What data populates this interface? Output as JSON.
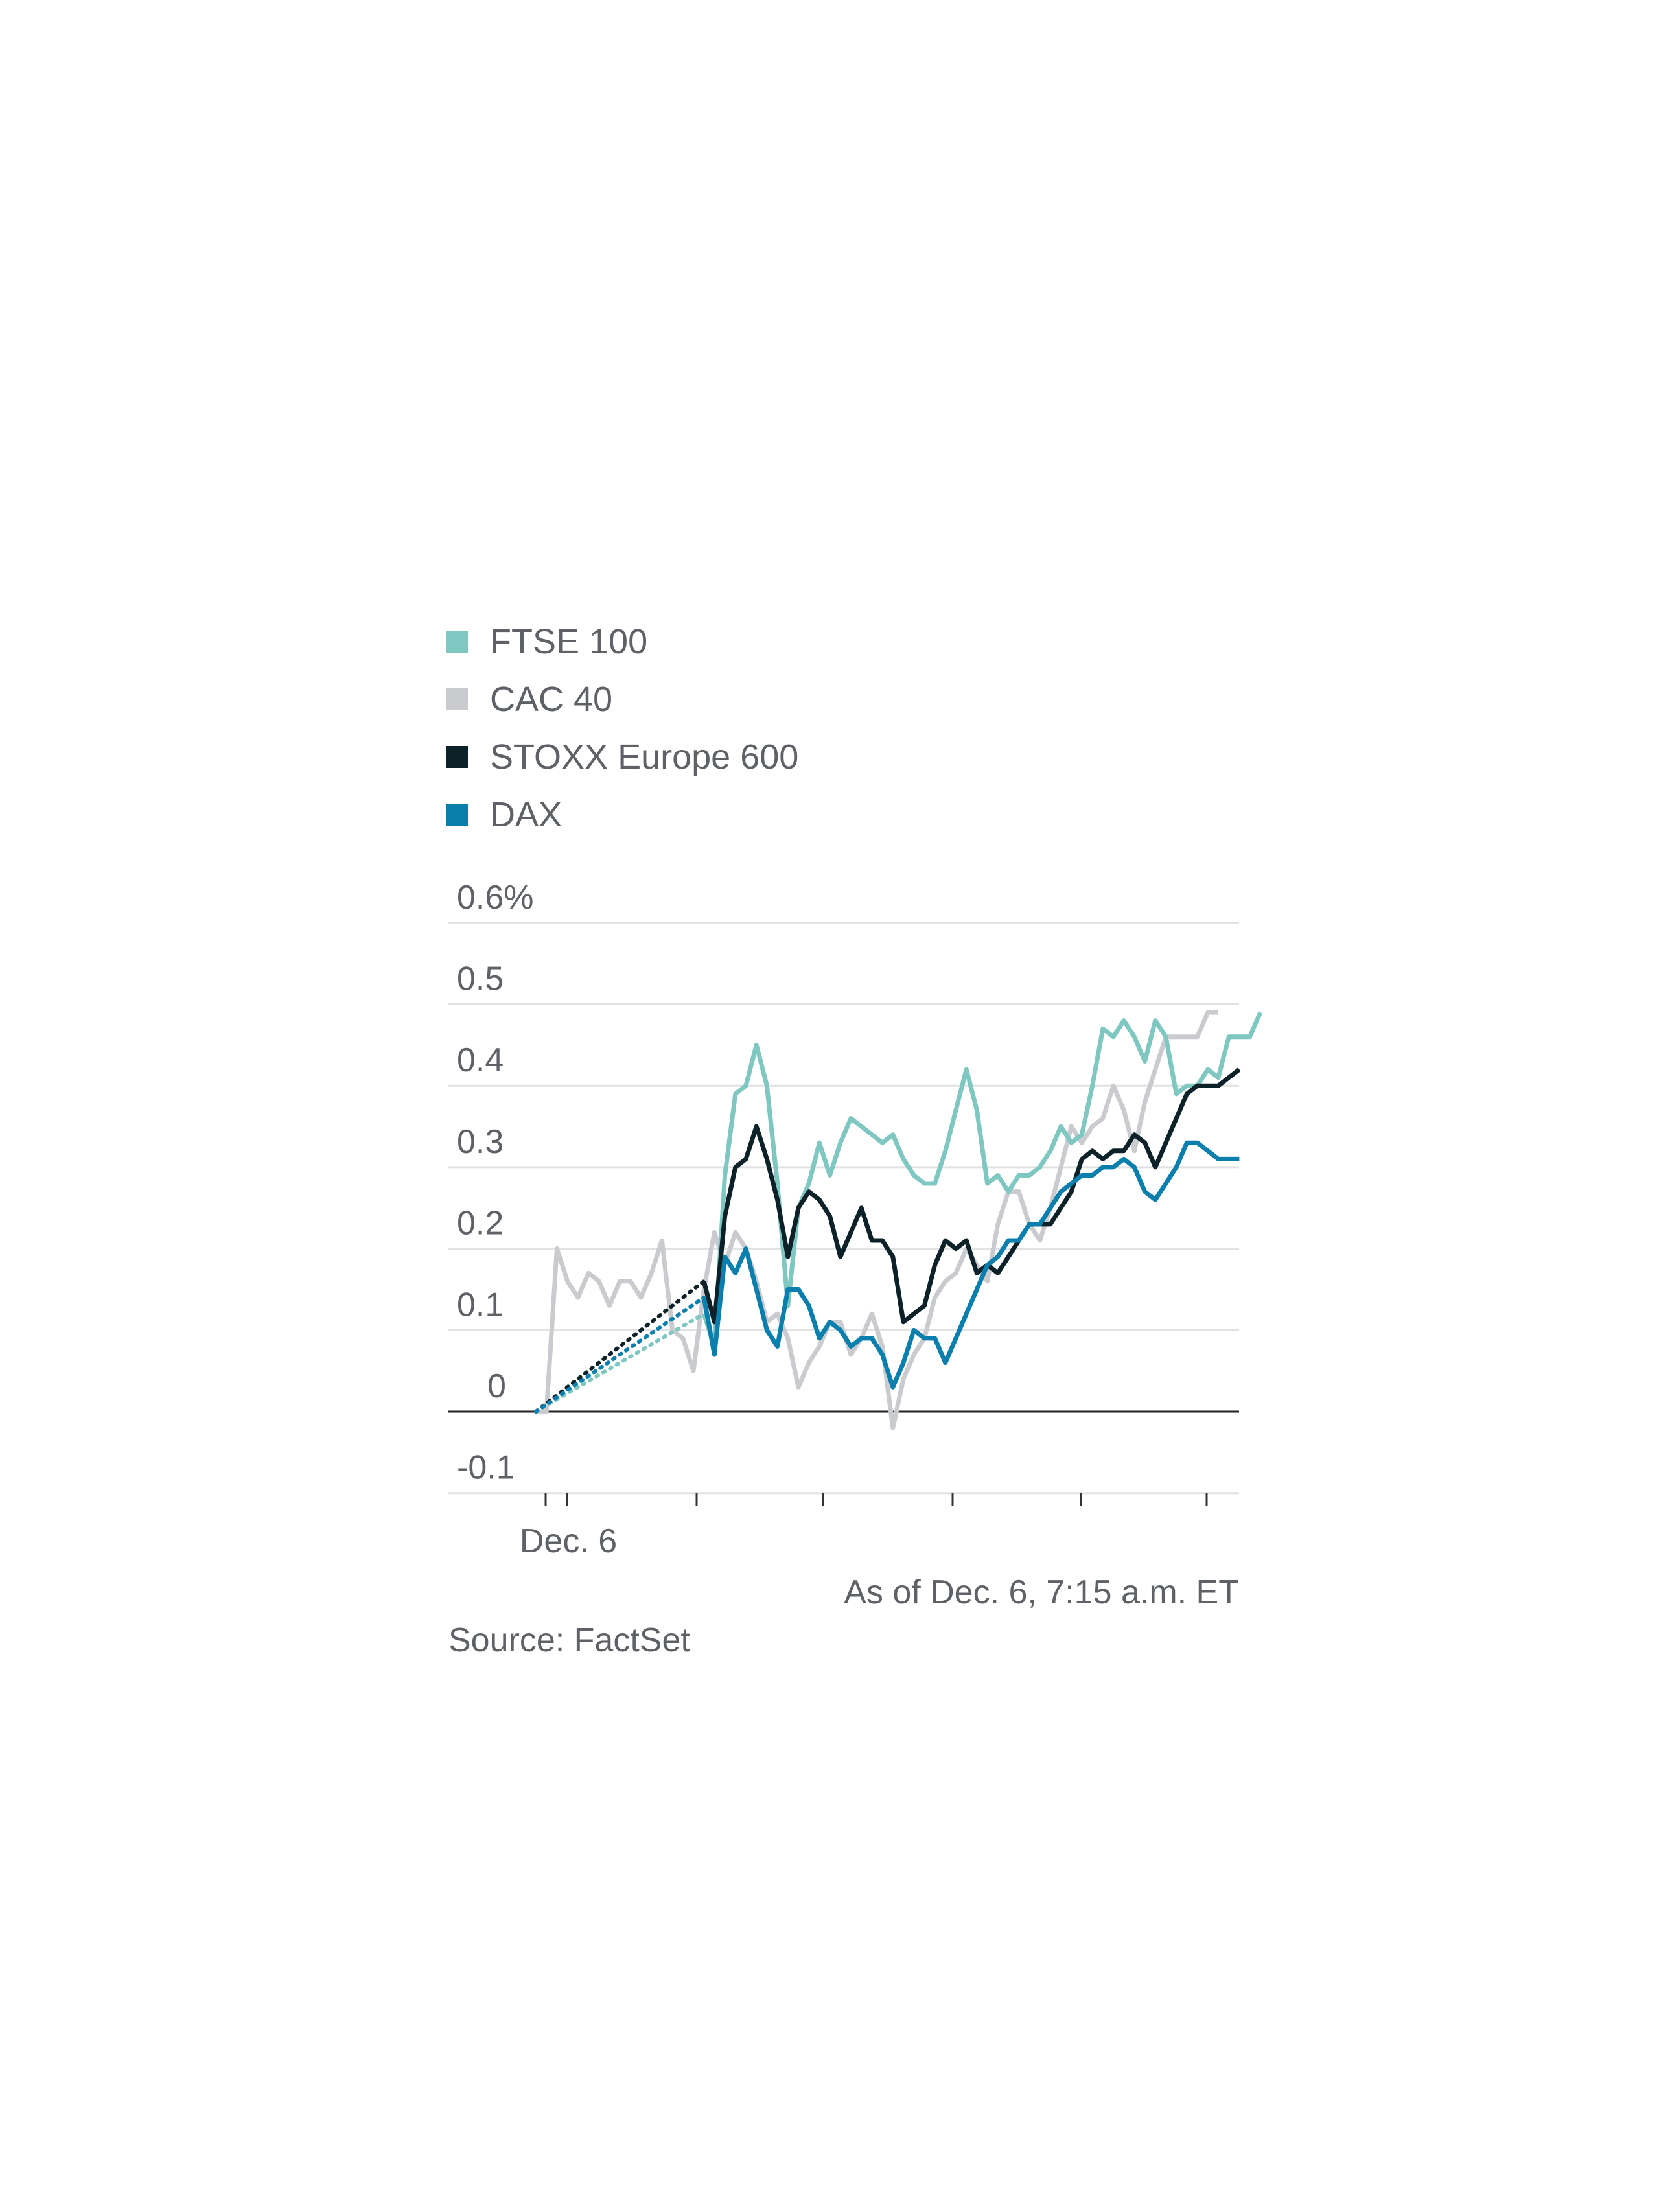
{
  "chart_data": {
    "type": "line",
    "legend_position": "top-left",
    "grid": true,
    "ylim": [
      -0.1,
      0.6
    ],
    "y_ticks": [
      "0.6%",
      "0.5",
      "0.4",
      "0.3",
      "0.2",
      "0.1",
      "0",
      "-0.1"
    ],
    "y_tick_values": [
      0.6,
      0.5,
      0.4,
      0.3,
      0.2,
      0.1,
      0,
      -0.1
    ],
    "x_tick_label": "Dec. 6",
    "note": "As of Dec. 6, 7:15 a.m. ET",
    "source": "Source: FactSet",
    "series": [
      {
        "name": "FTSE 100",
        "color": "#7fc7c1",
        "dotted": [
          [
            0,
            0
          ],
          [
            8,
            0.06
          ],
          [
            16,
            0.12
          ]
        ],
        "values": [
          [
            16,
            0.12
          ],
          [
            17,
            0.08
          ],
          [
            18,
            0.29
          ],
          [
            19,
            0.39
          ],
          [
            20,
            0.4
          ],
          [
            21,
            0.45
          ],
          [
            22,
            0.4
          ],
          [
            23,
            0.28
          ],
          [
            24,
            0.13
          ],
          [
            25,
            0.25
          ],
          [
            26,
            0.28
          ],
          [
            27,
            0.33
          ],
          [
            28,
            0.29
          ],
          [
            29,
            0.33
          ],
          [
            30,
            0.36
          ],
          [
            31,
            0.35
          ],
          [
            32,
            0.34
          ],
          [
            33,
            0.33
          ],
          [
            34,
            0.34
          ],
          [
            35,
            0.31
          ],
          [
            36,
            0.29
          ],
          [
            37,
            0.28
          ],
          [
            38,
            0.28
          ],
          [
            39,
            0.32
          ],
          [
            40,
            0.37
          ],
          [
            41,
            0.42
          ],
          [
            42,
            0.37
          ],
          [
            43,
            0.28
          ],
          [
            44,
            0.29
          ],
          [
            45,
            0.27
          ],
          [
            46,
            0.29
          ],
          [
            47,
            0.29
          ],
          [
            48,
            0.3
          ],
          [
            49,
            0.32
          ],
          [
            50,
            0.35
          ],
          [
            51,
            0.33
          ],
          [
            52,
            0.34
          ],
          [
            53,
            0.4
          ],
          [
            54,
            0.47
          ],
          [
            55,
            0.46
          ],
          [
            56,
            0.48
          ],
          [
            57,
            0.46
          ],
          [
            58,
            0.43
          ],
          [
            59,
            0.48
          ],
          [
            60,
            0.46
          ],
          [
            61,
            0.39
          ],
          [
            62,
            0.4
          ],
          [
            63,
            0.4
          ],
          [
            64,
            0.42
          ],
          [
            65,
            0.41
          ],
          [
            66,
            0.46
          ],
          [
            67,
            0.46
          ],
          [
            68,
            0.46
          ],
          [
            69,
            0.49
          ]
        ]
      },
      {
        "name": "CAC 40",
        "color": "#c9cbcf",
        "values": [
          [
            0,
            0
          ],
          [
            1,
            0
          ],
          [
            2,
            0.2
          ],
          [
            3,
            0.16
          ],
          [
            4,
            0.14
          ],
          [
            5,
            0.17
          ],
          [
            6,
            0.16
          ],
          [
            7,
            0.13
          ],
          [
            8,
            0.16
          ],
          [
            9,
            0.16
          ],
          [
            10,
            0.14
          ],
          [
            11,
            0.17
          ],
          [
            12,
            0.21
          ],
          [
            13,
            0.1
          ],
          [
            14,
            0.09
          ],
          [
            15,
            0.05
          ],
          [
            16,
            0.15
          ],
          [
            17,
            0.22
          ],
          [
            18,
            0.18
          ],
          [
            19,
            0.22
          ],
          [
            20,
            0.2
          ],
          [
            21,
            0.16
          ],
          [
            22,
            0.11
          ],
          [
            23,
            0.12
          ],
          [
            24,
            0.09
          ],
          [
            25,
            0.03
          ],
          [
            26,
            0.06
          ],
          [
            27,
            0.08
          ],
          [
            28,
            0.11
          ],
          [
            29,
            0.11
          ],
          [
            30,
            0.07
          ],
          [
            31,
            0.09
          ],
          [
            32,
            0.12
          ],
          [
            33,
            0.08
          ],
          [
            34,
            -0.02
          ],
          [
            35,
            0.04
          ],
          [
            36,
            0.07
          ],
          [
            37,
            0.09
          ],
          [
            38,
            0.14
          ],
          [
            39,
            0.16
          ],
          [
            40,
            0.17
          ],
          [
            41,
            0.2
          ],
          [
            42,
            0.18
          ],
          [
            43,
            0.16
          ],
          [
            44,
            0.23
          ],
          [
            45,
            0.27
          ],
          [
            46,
            0.27
          ],
          [
            47,
            0.23
          ],
          [
            48,
            0.21
          ],
          [
            49,
            0.25
          ],
          [
            50,
            0.3
          ],
          [
            51,
            0.35
          ],
          [
            52,
            0.33
          ],
          [
            53,
            0.35
          ],
          [
            54,
            0.36
          ],
          [
            55,
            0.4
          ],
          [
            56,
            0.37
          ],
          [
            57,
            0.32
          ],
          [
            58,
            0.38
          ],
          [
            59,
            0.42
          ],
          [
            60,
            0.46
          ],
          [
            61,
            0.46
          ],
          [
            62,
            0.46
          ],
          [
            63,
            0.46
          ],
          [
            64,
            0.49
          ],
          [
            65,
            0.49
          ]
        ]
      },
      {
        "name": "STOXX Europe 600",
        "color": "#0d2129",
        "dotted": [
          [
            0,
            0
          ],
          [
            8,
            0.08
          ],
          [
            16,
            0.16
          ]
        ],
        "values": [
          [
            16,
            0.16
          ],
          [
            17,
            0.11
          ],
          [
            18,
            0.24
          ],
          [
            19,
            0.3
          ],
          [
            20,
            0.31
          ],
          [
            21,
            0.35
          ],
          [
            22,
            0.31
          ],
          [
            23,
            0.26
          ],
          [
            24,
            0.19
          ],
          [
            25,
            0.25
          ],
          [
            26,
            0.27
          ],
          [
            27,
            0.26
          ],
          [
            28,
            0.24
          ],
          [
            29,
            0.19
          ],
          [
            30,
            0.22
          ],
          [
            31,
            0.25
          ],
          [
            32,
            0.21
          ],
          [
            33,
            0.21
          ],
          [
            34,
            0.19
          ],
          [
            35,
            0.11
          ],
          [
            36,
            0.12
          ],
          [
            37,
            0.13
          ],
          [
            38,
            0.18
          ],
          [
            39,
            0.21
          ],
          [
            40,
            0.2
          ],
          [
            41,
            0.21
          ],
          [
            42,
            0.17
          ],
          [
            43,
            0.18
          ],
          [
            44,
            0.17
          ],
          [
            45,
            0.19
          ],
          [
            46,
            0.21
          ],
          [
            47,
            0.23
          ],
          [
            48,
            0.23
          ],
          [
            49,
            0.23
          ],
          [
            50,
            0.25
          ],
          [
            51,
            0.27
          ],
          [
            52,
            0.31
          ],
          [
            53,
            0.32
          ],
          [
            54,
            0.31
          ],
          [
            55,
            0.32
          ],
          [
            56,
            0.32
          ],
          [
            57,
            0.34
          ],
          [
            58,
            0.33
          ],
          [
            59,
            0.3
          ],
          [
            60,
            0.33
          ],
          [
            61,
            0.36
          ],
          [
            62,
            0.39
          ],
          [
            63,
            0.4
          ],
          [
            64,
            0.4
          ],
          [
            65,
            0.4
          ],
          [
            66,
            0.41
          ],
          [
            67,
            0.42
          ]
        ]
      },
      {
        "name": "DAX",
        "color": "#0a7fad",
        "dotted": [
          [
            0,
            0
          ],
          [
            8,
            0.07
          ],
          [
            16,
            0.14
          ]
        ],
        "values": [
          [
            16,
            0.14
          ],
          [
            17,
            0.07
          ],
          [
            18,
            0.19
          ],
          [
            19,
            0.17
          ],
          [
            20,
            0.2
          ],
          [
            21,
            0.15
          ],
          [
            22,
            0.1
          ],
          [
            23,
            0.08
          ],
          [
            24,
            0.15
          ],
          [
            25,
            0.15
          ],
          [
            26,
            0.13
          ],
          [
            27,
            0.09
          ],
          [
            28,
            0.11
          ],
          [
            29,
            0.1
          ],
          [
            30,
            0.08
          ],
          [
            31,
            0.09
          ],
          [
            32,
            0.09
          ],
          [
            33,
            0.07
          ],
          [
            34,
            0.03
          ],
          [
            35,
            0.06
          ],
          [
            36,
            0.1
          ],
          [
            37,
            0.09
          ],
          [
            38,
            0.09
          ],
          [
            39,
            0.06
          ],
          [
            40,
            0.09
          ],
          [
            41,
            0.12
          ],
          [
            42,
            0.15
          ],
          [
            43,
            0.18
          ],
          [
            44,
            0.19
          ],
          [
            45,
            0.21
          ],
          [
            46,
            0.21
          ],
          [
            47,
            0.23
          ],
          [
            48,
            0.23
          ],
          [
            49,
            0.25
          ],
          [
            50,
            0.27
          ],
          [
            51,
            0.28
          ],
          [
            52,
            0.29
          ],
          [
            53,
            0.29
          ],
          [
            54,
            0.3
          ],
          [
            55,
            0.3
          ],
          [
            56,
            0.31
          ],
          [
            57,
            0.3
          ],
          [
            58,
            0.27
          ],
          [
            59,
            0.26
          ],
          [
            60,
            0.28
          ],
          [
            61,
            0.3
          ],
          [
            62,
            0.33
          ],
          [
            63,
            0.33
          ],
          [
            64,
            0.32
          ],
          [
            65,
            0.31
          ],
          [
            66,
            0.31
          ],
          [
            67,
            0.31
          ]
        ]
      }
    ]
  }
}
